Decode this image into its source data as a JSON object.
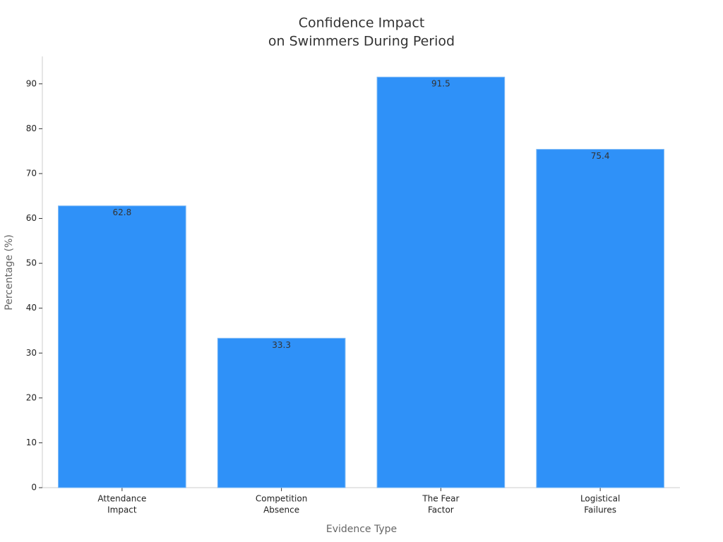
{
  "chart_data": {
    "type": "bar",
    "title": [
      "Confidence Impact",
      "on Swimmers During Period"
    ],
    "x_label": "Evidence Type",
    "y_label": "Percentage (%)",
    "categories": [
      [
        "Attendance",
        "Impact"
      ],
      [
        "Competition",
        "Absence"
      ],
      [
        "The Fear",
        "Factor"
      ],
      [
        "Logistical",
        "Failures"
      ]
    ],
    "values": [
      62.8,
      33.3,
      91.5,
      75.4
    ],
    "color": "#2f91f8",
    "ylim": [
      0,
      96.1
    ],
    "yticks": [
      0,
      10,
      20,
      30,
      40,
      50,
      60,
      70,
      80,
      90
    ],
    "grid": false
  }
}
